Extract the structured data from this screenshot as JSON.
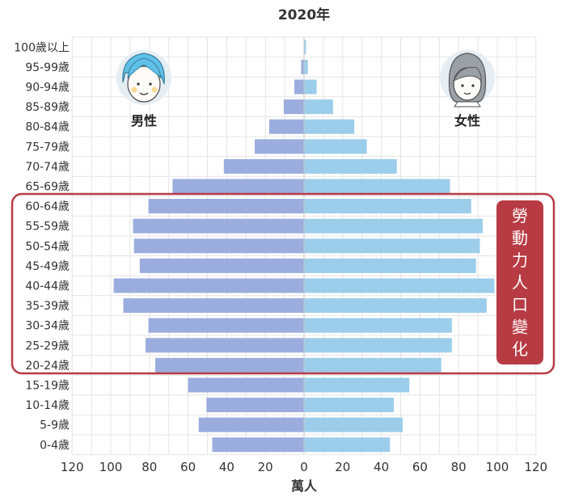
{
  "chart_data": {
    "type": "bar",
    "orientation": "horizontal",
    "layout": "population-pyramid",
    "title": "2020年",
    "xlabel": "萬人",
    "xlim": [
      -120,
      120
    ],
    "xticks": [
      120,
      100,
      80,
      60,
      40,
      20,
      0,
      20,
      40,
      60,
      80,
      100,
      120
    ],
    "grid": true,
    "categories": [
      "100歲以上",
      "95-99歲",
      "90-94歲",
      "85-89歲",
      "80-84歲",
      "75-79歲",
      "70-74歲",
      "65-69歲",
      "60-64歲",
      "55-59歲",
      "50-54歲",
      "45-49歲",
      "40-44歲",
      "35-39歲",
      "30-34歲",
      "25-29歲",
      "20-24歲",
      "15-19歲",
      "10-14歲",
      "5-9歲",
      "0-4歲"
    ],
    "series": [
      {
        "name": "男性",
        "color": "#9badde",
        "values": [
          0.2,
          1.5,
          5,
          10.5,
          18,
          25.5,
          41.5,
          68,
          80.5,
          88.5,
          88,
          85,
          98.5,
          93.5,
          80.5,
          82,
          77,
          60,
          50.5,
          54.5,
          47.5
        ]
      },
      {
        "name": "女性",
        "color": "#9ccdea",
        "values": [
          1,
          2,
          6.5,
          15,
          26,
          32.5,
          48,
          75.5,
          86.5,
          92.5,
          91,
          89,
          98.5,
          94.5,
          76.5,
          76.5,
          71,
          54.5,
          46.5,
          51,
          44.5
        ]
      }
    ],
    "highlight": {
      "label": "勞動力人口變化",
      "color": "#b83b44",
      "categories": [
        "60-64歲",
        "55-59歲",
        "50-54歲",
        "45-49歲",
        "40-44歲",
        "35-39歲",
        "30-34歲",
        "25-29歲",
        "20-24歲"
      ]
    }
  },
  "icons": {
    "male": "male-avatar-icon",
    "female": "female-avatar-icon"
  }
}
